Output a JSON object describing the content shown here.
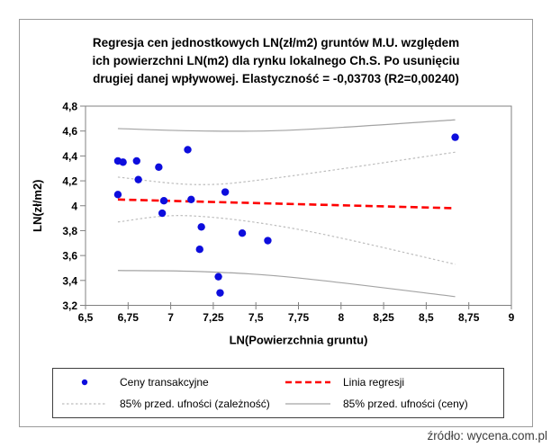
{
  "page": {
    "source_note": "źródło: wycena.com.pl"
  },
  "chart": {
    "title_lines": [
      "Regresja cen jednostkowych LN(zł/m2) gruntów M.U. względem",
      "ich powierzchni LN(m2) dla rynku lokalnego Ch.S. Po usunięciu",
      "drugiej danej wpływowej. Elastyczność = -0,03703 (R2=0,00240)"
    ],
    "legend": {
      "items": [
        {
          "label": "Ceny transakcyjne",
          "marker": "blue-dot"
        },
        {
          "label": "Linia regresji",
          "marker": "red-dashed-line"
        },
        {
          "label": "85% przed. ufności (zależność)",
          "marker": "gray-dotted-line"
        },
        {
          "label": "85% przed. ufności (ceny)",
          "marker": "gray-solid-line"
        }
      ]
    }
  },
  "chart_data": {
    "type": "scatter",
    "title": "Regresja cen jednostkowych LN(zł/m2) gruntów M.U. względem ich powierzchni LN(m2) dla rynku lokalnego Ch.S. Po usunięciu drugiej danej wpływowej. Elastyczność = -0,03703 (R2=0,00240)",
    "xlabel": "LN(Powierzchnia gruntu)",
    "ylabel": "LN(zł/m2)",
    "xlim": [
      6.5,
      9
    ],
    "ylim": [
      3.2,
      4.8
    ],
    "grid": false,
    "legend_position": "bottom",
    "stats": {
      "elasticity": "-0,03703",
      "r2": "0,00240",
      "confidence_level": "85%"
    },
    "x_ticks": {
      "values": [
        6.5,
        6.75,
        7,
        7.25,
        7.5,
        7.75,
        8,
        8.25,
        8.5,
        8.75,
        9
      ],
      "labels": [
        "6,5",
        "6,75",
        "7",
        "7,25",
        "7,5",
        "7,75",
        "8",
        "8,25",
        "8,5",
        "8,75",
        "9"
      ]
    },
    "y_ticks": {
      "values": [
        3.2,
        3.4,
        3.6,
        3.8,
        4,
        4.2,
        4.4,
        4.6,
        4.8
      ],
      "labels": [
        "3,2",
        "3,4",
        "3,6",
        "3,8",
        "4",
        "4,2",
        "4,4",
        "4,6",
        "4,8"
      ]
    },
    "series": [
      {
        "name": "Ceny transakcyjne",
        "kind": "scatter",
        "color": "#0d0ddd",
        "marker_radius": 4.2,
        "points": [
          [
            6.69,
            4.36
          ],
          [
            6.72,
            4.35
          ],
          [
            6.8,
            4.36
          ],
          [
            6.93,
            4.31
          ],
          [
            6.81,
            4.21
          ],
          [
            6.69,
            4.09
          ],
          [
            6.96,
            4.04
          ],
          [
            7.12,
            4.05
          ],
          [
            7.1,
            4.45
          ],
          [
            7.32,
            4.11
          ],
          [
            6.95,
            3.94
          ],
          [
            7.18,
            3.83
          ],
          [
            7.42,
            3.78
          ],
          [
            7.57,
            3.72
          ],
          [
            7.17,
            3.65
          ],
          [
            7.28,
            3.43
          ],
          [
            7.29,
            3.3
          ],
          [
            8.67,
            4.55
          ]
        ]
      },
      {
        "name": "Linia regresji",
        "kind": "line",
        "style": "dashed",
        "color": "#fe0000",
        "width": 2.6,
        "points": [
          [
            6.69,
            4.05
          ],
          [
            8.67,
            3.98
          ]
        ]
      },
      {
        "name": "85% przed. ufności (zależność)",
        "kind": "band",
        "style": "dotted",
        "color": "#bdbdbd",
        "width": 1.2,
        "upper": [
          [
            6.69,
            4.23
          ],
          [
            7.15,
            4.17
          ],
          [
            7.6,
            4.22
          ],
          [
            8.67,
            4.43
          ]
        ],
        "lower": [
          [
            6.69,
            3.87
          ],
          [
            7.1,
            3.92
          ],
          [
            7.75,
            3.81
          ],
          [
            8.67,
            3.53
          ]
        ]
      },
      {
        "name": "85% przed. ufności (ceny)",
        "kind": "band",
        "style": "solid",
        "color": "#a3a3a3",
        "width": 1.2,
        "upper": [
          [
            6.69,
            4.62
          ],
          [
            7.2,
            4.6
          ],
          [
            7.75,
            4.61
          ],
          [
            8.67,
            4.69
          ]
        ],
        "lower": [
          [
            6.69,
            3.48
          ],
          [
            7.2,
            3.47
          ],
          [
            7.75,
            3.42
          ],
          [
            8.67,
            3.27
          ]
        ]
      }
    ]
  },
  "colors": {
    "point_blue": "#0d0ddd",
    "regression_red": "#fe0000",
    "band_inner_gray": "#bdbdbd",
    "band_outer_gray": "#a3a3a3",
    "axis_gray": "#808080",
    "frame_gray": "#9b9b9b",
    "legend_border": "#3f3f3f",
    "text_black": "#000000"
  }
}
